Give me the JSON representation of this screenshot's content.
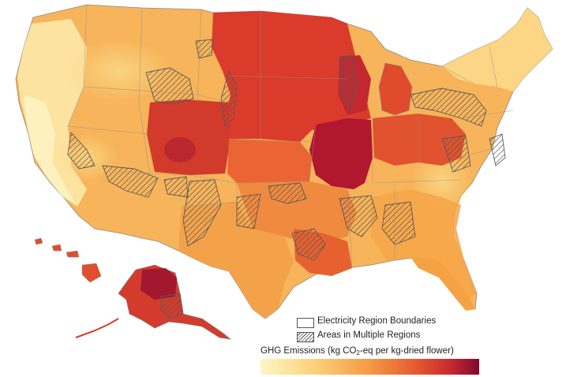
{
  "legend": {
    "boundary_label": "Electricity Region Boundaries",
    "multi_label": "Areas in Multiple Regions",
    "colorbar_title_pre": "GHG Emissions (kg CO",
    "colorbar_title_sub": "2",
    "colorbar_title_post": "-eq per kg-dried flower",
    "colorbar_title_close": ")"
  },
  "colors": {
    "low": "#fdf2b4",
    "mid_low": "#fbcf6c",
    "mid": "#f5a142",
    "mid_high": "#eb6a35",
    "high": "#d53327",
    "max": "#8e0a2e",
    "state_border": "#8a8a8a",
    "region_border": "#5a5a5a"
  }
}
